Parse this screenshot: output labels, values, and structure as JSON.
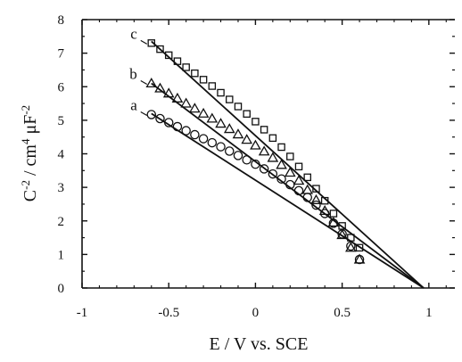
{
  "chart_data": {
    "type": "scatter",
    "xlabel": "E / V vs. SCE",
    "ylabel": {
      "base": "C",
      "exp1": "-2",
      "mid": " / cm",
      "exp2": "4",
      "mu": " μ",
      "unit": "F",
      "exp3": "-2"
    },
    "xlim": [
      -1,
      1.15
    ],
    "ylim": [
      0,
      8
    ],
    "xticks": [
      -1,
      -0.5,
      0,
      0.5,
      1
    ],
    "xtick_labels": [
      "-1",
      "-0.5",
      "0",
      "0.5",
      "1"
    ],
    "yticks": [
      0,
      1,
      2,
      3,
      4,
      5,
      6,
      7,
      8
    ],
    "ytick_labels": [
      "0",
      "1",
      "2",
      "3",
      "4",
      "5",
      "6",
      "7",
      "8"
    ],
    "grid": false,
    "series": [
      {
        "label": "a",
        "marker": "circle",
        "x": [
          -0.6,
          -0.55,
          -0.5,
          -0.45,
          -0.4,
          -0.35,
          -0.3,
          -0.25,
          -0.2,
          -0.15,
          -0.1,
          -0.05,
          0,
          0.05,
          0.1,
          0.15,
          0.2,
          0.25,
          0.3,
          0.35,
          0.4,
          0.45,
          0.5,
          0.55,
          0.6
        ],
        "y": [
          5.17,
          5.05,
          4.93,
          4.81,
          4.69,
          4.57,
          4.45,
          4.33,
          4.21,
          4.08,
          3.95,
          3.82,
          3.69,
          3.55,
          3.4,
          3.25,
          3.08,
          2.9,
          2.7,
          2.47,
          2.22,
          1.93,
          1.61,
          1.25,
          0.85
        ],
        "fit_line": {
          "x": [
            -0.6,
            0.97
          ],
          "y": [
            5.2,
            0
          ]
        }
      },
      {
        "label": "b",
        "marker": "triangle",
        "x": [
          -0.6,
          -0.55,
          -0.5,
          -0.45,
          -0.4,
          -0.35,
          -0.3,
          -0.25,
          -0.2,
          -0.15,
          -0.1,
          -0.05,
          0,
          0.05,
          0.1,
          0.15,
          0.2,
          0.25,
          0.3,
          0.35,
          0.4,
          0.45,
          0.5,
          0.55,
          0.6
        ],
        "y": [
          6.1,
          5.95,
          5.8,
          5.65,
          5.5,
          5.35,
          5.2,
          5.05,
          4.9,
          4.74,
          4.58,
          4.42,
          4.25,
          4.07,
          3.88,
          3.67,
          3.44,
          3.2,
          2.92,
          2.62,
          2.3,
          1.95,
          1.58,
          1.2,
          0.85
        ],
        "fit_line": {
          "x": [
            -0.6,
            0.97
          ],
          "y": [
            6.1,
            0
          ]
        }
      },
      {
        "label": "c",
        "marker": "square",
        "x": [
          -0.6,
          -0.55,
          -0.5,
          -0.45,
          -0.4,
          -0.35,
          -0.3,
          -0.25,
          -0.2,
          -0.15,
          -0.1,
          -0.05,
          0,
          0.05,
          0.1,
          0.15,
          0.2,
          0.25,
          0.3,
          0.35,
          0.4,
          0.45,
          0.5,
          0.55,
          0.6
        ],
        "y": [
          7.3,
          7.12,
          6.94,
          6.76,
          6.58,
          6.4,
          6.21,
          6.02,
          5.82,
          5.62,
          5.41,
          5.19,
          4.96,
          4.72,
          4.47,
          4.2,
          3.92,
          3.62,
          3.3,
          2.96,
          2.6,
          2.22,
          1.85,
          1.5,
          1.2
        ],
        "fit_line": {
          "x": [
            -0.6,
            0.97
          ],
          "y": [
            7.35,
            0
          ]
        }
      }
    ]
  }
}
